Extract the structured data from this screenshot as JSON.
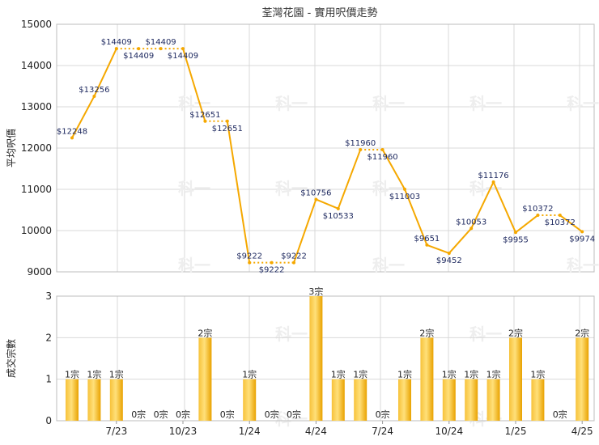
{
  "chart_data": [
    {
      "type": "line",
      "title": "荃灣花園 - 實用呎價走勢",
      "ylabel": "平均呎價",
      "ylim": [
        9000,
        15000
      ],
      "yticks": [
        9000,
        10000,
        11000,
        12000,
        13000,
        14000,
        15000
      ],
      "grid": true,
      "color": "#f5a800",
      "points": [
        {
          "i": 0,
          "value": 12248,
          "label": "$12248",
          "pos": "above"
        },
        {
          "i": 1,
          "value": 13256,
          "label": "$13256",
          "pos": "above"
        },
        {
          "i": 2,
          "value": 14409,
          "label": "$14409",
          "pos": "above"
        },
        {
          "i": 3,
          "value": 14409,
          "label": "$14409",
          "pos": "below"
        },
        {
          "i": 4,
          "value": 14409,
          "label": "$14409",
          "pos": "above"
        },
        {
          "i": 5,
          "value": 14409,
          "label": "$14409",
          "pos": "below"
        },
        {
          "i": 6,
          "value": 12651,
          "label": "$12651",
          "pos": "above"
        },
        {
          "i": 7,
          "value": 12651,
          "label": "$12651",
          "pos": "below"
        },
        {
          "i": 8,
          "value": 9222,
          "label": "$9222",
          "pos": "above"
        },
        {
          "i": 9,
          "value": 9222,
          "label": "$9222",
          "pos": "below"
        },
        {
          "i": 10,
          "value": 9222,
          "label": "$9222",
          "pos": "above"
        },
        {
          "i": 11,
          "value": 10756,
          "label": "$10756",
          "pos": "above"
        },
        {
          "i": 12,
          "value": 10533,
          "label": "$10533",
          "pos": "below"
        },
        {
          "i": 13,
          "value": 11960,
          "label": "$11960",
          "pos": "above"
        },
        {
          "i": 14,
          "value": 11960,
          "label": "$11960",
          "pos": "below"
        },
        {
          "i": 15,
          "value": 11003,
          "label": "$11003",
          "pos": "below"
        },
        {
          "i": 16,
          "value": 9651,
          "label": "$9651",
          "pos": "above"
        },
        {
          "i": 17,
          "value": 9452,
          "label": "$9452",
          "pos": "below"
        },
        {
          "i": 18,
          "value": 10053,
          "label": "$10053",
          "pos": "above"
        },
        {
          "i": 19,
          "value": 11176,
          "label": "$11176",
          "pos": "above"
        },
        {
          "i": 20,
          "value": 9955,
          "label": "$9955",
          "pos": "below"
        },
        {
          "i": 21,
          "value": 10372,
          "label": "$10372",
          "pos": "above"
        },
        {
          "i": 22,
          "value": 10372,
          "label": "$10372",
          "pos": "below"
        },
        {
          "i": 23,
          "value": 9974,
          "label": "$9974",
          "pos": "below"
        }
      ],
      "solid_segments": [
        [
          0,
          1
        ],
        [
          1,
          2
        ],
        [
          5,
          6
        ],
        [
          7,
          8
        ],
        [
          10,
          11
        ],
        [
          11,
          12
        ],
        [
          12,
          13
        ],
        [
          14,
          15
        ],
        [
          15,
          16
        ],
        [
          16,
          17
        ],
        [
          17,
          18
        ],
        [
          18,
          19
        ],
        [
          19,
          20
        ],
        [
          20,
          21
        ],
        [
          22,
          23
        ]
      ],
      "dotted_segments": [
        [
          2,
          3
        ],
        [
          3,
          4
        ],
        [
          4,
          5
        ],
        [
          6,
          7
        ],
        [
          8,
          9
        ],
        [
          9,
          10
        ],
        [
          13,
          14
        ],
        [
          21,
          22
        ]
      ]
    },
    {
      "type": "bar",
      "ylabel": "成交宗數",
      "ylim": [
        0,
        3
      ],
      "yticks": [
        0,
        1,
        2,
        3
      ],
      "grid": true,
      "color": "#f5a800",
      "values": [
        1,
        1,
        1,
        0,
        0,
        0,
        2,
        0,
        1,
        0,
        0,
        3,
        1,
        1,
        0,
        1,
        2,
        1,
        1,
        1,
        2,
        1,
        0,
        2
      ],
      "labels": [
        "1宗",
        "1宗",
        "1宗",
        "0宗",
        "0宗",
        "0宗",
        "2宗",
        "0宗",
        "1宗",
        "0宗",
        "0宗",
        "3宗",
        "1宗",
        "1宗",
        "0宗",
        "1宗",
        "2宗",
        "1宗",
        "1宗",
        "1宗",
        "2宗",
        "1宗",
        "0宗",
        "2宗"
      ],
      "x_ticks": [
        {
          "i": 2,
          "label": "7/23"
        },
        {
          "i": 5,
          "label": "10/23"
        },
        {
          "i": 8,
          "label": "1/24"
        },
        {
          "i": 11,
          "label": "4/24"
        },
        {
          "i": 14,
          "label": "7/24"
        },
        {
          "i": 17,
          "label": "10/24"
        },
        {
          "i": 20,
          "label": "1/25"
        },
        {
          "i": 23,
          "label": "4/25"
        }
      ]
    }
  ],
  "watermark": "科一"
}
